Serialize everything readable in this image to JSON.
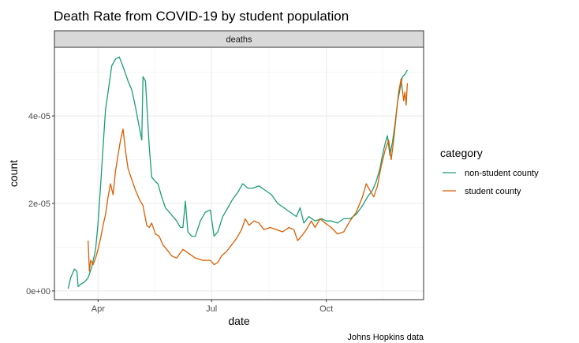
{
  "chart_data": {
    "type": "line",
    "title": "Death Rate from COVID-19 by student population",
    "facet_label": "deaths",
    "xlabel": "date",
    "ylabel": "count",
    "caption": "Johns Hopkins data",
    "legend": {
      "title": "category",
      "position": "right"
    },
    "x_ticks": [
      {
        "label": "Apr",
        "date": "2020-04-01"
      },
      {
        "label": "Jul",
        "date": "2020-07-01"
      },
      {
        "label": "Oct",
        "date": "2020-10-01"
      }
    ],
    "y_ticks": [
      {
        "label": "0e+00",
        "value": 0
      },
      {
        "label": "2e-05",
        "value": 2e-05
      },
      {
        "label": "4e-05",
        "value": 4e-05
      }
    ],
    "xlim": [
      "2020-02-26",
      "2020-12-18"
    ],
    "ylim": [
      -2e-06,
      5.57e-05
    ],
    "grid": true,
    "series": [
      {
        "name": "non-student county",
        "color": "#1b9e77",
        "points": [
          [
            "2020-03-08",
            5e-07
          ],
          [
            "2020-03-10",
            3e-06
          ],
          [
            "2020-03-13",
            5e-06
          ],
          [
            "2020-03-15",
            4.5e-06
          ],
          [
            "2020-03-16",
            1e-06
          ],
          [
            "2020-03-18",
            1.5e-06
          ],
          [
            "2020-03-21",
            2e-06
          ],
          [
            "2020-03-24",
            3e-06
          ],
          [
            "2020-03-27",
            5.5e-06
          ],
          [
            "2020-03-30",
            9.5e-06
          ],
          [
            "2020-04-01",
            1.55e-05
          ],
          [
            "2020-04-03",
            2.4e-05
          ],
          [
            "2020-04-05",
            3.3e-05
          ],
          [
            "2020-04-07",
            4.15e-05
          ],
          [
            "2020-04-10",
            4.75e-05
          ],
          [
            "2020-04-12",
            5.15e-05
          ],
          [
            "2020-04-15",
            5.3e-05
          ],
          [
            "2020-04-18",
            5.35e-05
          ],
          [
            "2020-04-20",
            5.2e-05
          ],
          [
            "2020-04-22",
            5.05e-05
          ],
          [
            "2020-04-25",
            4.8e-05
          ],
          [
            "2020-04-28",
            4.6e-05
          ],
          [
            "2020-05-01",
            4.2e-05
          ],
          [
            "2020-05-04",
            3.75e-05
          ],
          [
            "2020-05-06",
            3.45e-05
          ],
          [
            "2020-05-07",
            4.9e-05
          ],
          [
            "2020-05-09",
            4.8e-05
          ],
          [
            "2020-05-12",
            3.3e-05
          ],
          [
            "2020-05-14",
            2.6e-05
          ],
          [
            "2020-05-17",
            2.5e-05
          ],
          [
            "2020-05-19",
            2.45e-05
          ],
          [
            "2020-05-22",
            2.15e-05
          ],
          [
            "2020-05-25",
            1.9e-05
          ],
          [
            "2020-05-28",
            1.8e-05
          ],
          [
            "2020-05-31",
            1.7e-05
          ],
          [
            "2020-06-03",
            1.6e-05
          ],
          [
            "2020-06-06",
            1.45e-05
          ],
          [
            "2020-06-08",
            1.45e-05
          ],
          [
            "2020-06-10",
            2.05e-05
          ],
          [
            "2020-06-12",
            1.35e-05
          ],
          [
            "2020-06-15",
            1.25e-05
          ],
          [
            "2020-06-18",
            1.25e-05
          ],
          [
            "2020-06-22",
            1.6e-05
          ],
          [
            "2020-06-26",
            1.8e-05
          ],
          [
            "2020-06-30",
            1.85e-05
          ],
          [
            "2020-07-03",
            1.25e-05
          ],
          [
            "2020-07-06",
            1.35e-05
          ],
          [
            "2020-07-10",
            1.7e-05
          ],
          [
            "2020-07-14",
            1.9e-05
          ],
          [
            "2020-07-18",
            2.1e-05
          ],
          [
            "2020-07-22",
            2.25e-05
          ],
          [
            "2020-07-26",
            2.45e-05
          ],
          [
            "2020-07-30",
            2.35e-05
          ],
          [
            "2020-08-03",
            2.35e-05
          ],
          [
            "2020-08-08",
            2.4e-05
          ],
          [
            "2020-08-13",
            2.3e-05
          ],
          [
            "2020-08-18",
            2.2e-05
          ],
          [
            "2020-08-23",
            2e-05
          ],
          [
            "2020-08-28",
            1.9e-05
          ],
          [
            "2020-09-02",
            1.8e-05
          ],
          [
            "2020-09-07",
            1.7e-05
          ],
          [
            "2020-09-10",
            1.9e-05
          ],
          [
            "2020-09-13",
            1.55e-05
          ],
          [
            "2020-09-17",
            1.7e-05
          ],
          [
            "2020-09-22",
            1.6e-05
          ],
          [
            "2020-09-27",
            1.65e-05
          ],
          [
            "2020-10-01",
            1.6e-05
          ],
          [
            "2020-10-05",
            1.6e-05
          ],
          [
            "2020-10-10",
            1.55e-05
          ],
          [
            "2020-10-15",
            1.65e-05
          ],
          [
            "2020-10-20",
            1.65e-05
          ],
          [
            "2020-10-25",
            1.75e-05
          ],
          [
            "2020-10-30",
            1.95e-05
          ],
          [
            "2020-11-03",
            2.15e-05
          ],
          [
            "2020-11-07",
            2.3e-05
          ],
          [
            "2020-11-10",
            2.5e-05
          ],
          [
            "2020-11-13",
            2.8e-05
          ],
          [
            "2020-11-15",
            3.1e-05
          ],
          [
            "2020-11-17",
            3.35e-05
          ],
          [
            "2020-11-19",
            3.55e-05
          ],
          [
            "2020-11-21",
            3.1e-05
          ],
          [
            "2020-11-23",
            3.4e-05
          ],
          [
            "2020-11-25",
            3.8e-05
          ],
          [
            "2020-11-27",
            4.3e-05
          ],
          [
            "2020-11-29",
            4.6e-05
          ],
          [
            "2020-12-01",
            4.9e-05
          ],
          [
            "2020-12-03",
            4.95e-05
          ],
          [
            "2020-12-05",
            5.05e-05
          ]
        ]
      },
      {
        "name": "student county",
        "color": "#d95f02",
        "points": [
          [
            "2020-03-24",
            1.15e-05
          ],
          [
            "2020-03-25",
            4.5e-06
          ],
          [
            "2020-03-26",
            7e-06
          ],
          [
            "2020-03-28",
            6e-06
          ],
          [
            "2020-03-30",
            7.5e-06
          ],
          [
            "2020-04-01",
            9.5e-06
          ],
          [
            "2020-04-03",
            1.2e-05
          ],
          [
            "2020-04-05",
            1.5e-05
          ],
          [
            "2020-04-07",
            1.75e-05
          ],
          [
            "2020-04-09",
            2.15e-05
          ],
          [
            "2020-04-11",
            2.45e-05
          ],
          [
            "2020-04-13",
            2.2e-05
          ],
          [
            "2020-04-15",
            2.75e-05
          ],
          [
            "2020-04-17",
            3.1e-05
          ],
          [
            "2020-04-19",
            3.45e-05
          ],
          [
            "2020-04-21",
            3.7e-05
          ],
          [
            "2020-04-23",
            3.2e-05
          ],
          [
            "2020-04-25",
            2.8e-05
          ],
          [
            "2020-04-28",
            2.55e-05
          ],
          [
            "2020-05-01",
            2.3e-05
          ],
          [
            "2020-05-04",
            2.1e-05
          ],
          [
            "2020-05-07",
            1.95e-05
          ],
          [
            "2020-05-10",
            1.5e-05
          ],
          [
            "2020-05-12",
            1.45e-05
          ],
          [
            "2020-05-14",
            1.55e-05
          ],
          [
            "2020-05-17",
            1.3e-05
          ],
          [
            "2020-05-20",
            1.25e-05
          ],
          [
            "2020-05-23",
            1.05e-05
          ],
          [
            "2020-05-26",
            9.5e-06
          ],
          [
            "2020-05-30",
            8e-06
          ],
          [
            "2020-06-03",
            7.5e-06
          ],
          [
            "2020-06-08",
            9.5e-06
          ],
          [
            "2020-06-13",
            8.5e-06
          ],
          [
            "2020-06-18",
            7.5e-06
          ],
          [
            "2020-06-24",
            7e-06
          ],
          [
            "2020-06-30",
            7e-06
          ],
          [
            "2020-07-03",
            6e-06
          ],
          [
            "2020-07-06",
            6.5e-06
          ],
          [
            "2020-07-09",
            8e-06
          ],
          [
            "2020-07-13",
            9e-06
          ],
          [
            "2020-07-17",
            1.05e-05
          ],
          [
            "2020-07-21",
            1.2e-05
          ],
          [
            "2020-07-25",
            1.4e-05
          ],
          [
            "2020-07-28",
            1.65e-05
          ],
          [
            "2020-07-31",
            1.5e-05
          ],
          [
            "2020-08-04",
            1.6e-05
          ],
          [
            "2020-08-08",
            1.55e-05
          ],
          [
            "2020-08-12",
            1.4e-05
          ],
          [
            "2020-08-17",
            1.45e-05
          ],
          [
            "2020-08-22",
            1.4e-05
          ],
          [
            "2020-08-27",
            1.35e-05
          ],
          [
            "2020-09-01",
            1.45e-05
          ],
          [
            "2020-09-05",
            1.4e-05
          ],
          [
            "2020-09-08",
            1.15e-05
          ],
          [
            "2020-09-11",
            1.25e-05
          ],
          [
            "2020-09-15",
            1.4e-05
          ],
          [
            "2020-09-19",
            1.6e-05
          ],
          [
            "2020-09-22",
            1.45e-05
          ],
          [
            "2020-09-26",
            1.65e-05
          ],
          [
            "2020-09-30",
            1.55e-05
          ],
          [
            "2020-10-05",
            1.45e-05
          ],
          [
            "2020-10-10",
            1.3e-05
          ],
          [
            "2020-10-15",
            1.35e-05
          ],
          [
            "2020-10-20",
            1.6e-05
          ],
          [
            "2020-10-25",
            1.8e-05
          ],
          [
            "2020-10-30",
            2.15e-05
          ],
          [
            "2020-11-02",
            2.45e-05
          ],
          [
            "2020-11-05",
            2.3e-05
          ],
          [
            "2020-11-08",
            2.15e-05
          ],
          [
            "2020-11-11",
            2.4e-05
          ],
          [
            "2020-11-14",
            2.85e-05
          ],
          [
            "2020-11-17",
            3.2e-05
          ],
          [
            "2020-11-20",
            3.45e-05
          ],
          [
            "2020-11-22",
            3e-05
          ],
          [
            "2020-11-24",
            3.45e-05
          ],
          [
            "2020-11-26",
            4e-05
          ],
          [
            "2020-11-28",
            4.55e-05
          ],
          [
            "2020-11-30",
            4.85e-05
          ],
          [
            "2020-12-02",
            4.35e-05
          ],
          [
            "2020-12-03",
            4.55e-05
          ],
          [
            "2020-12-04",
            4.25e-05
          ],
          [
            "2020-12-05",
            4.75e-05
          ]
        ]
      }
    ]
  }
}
